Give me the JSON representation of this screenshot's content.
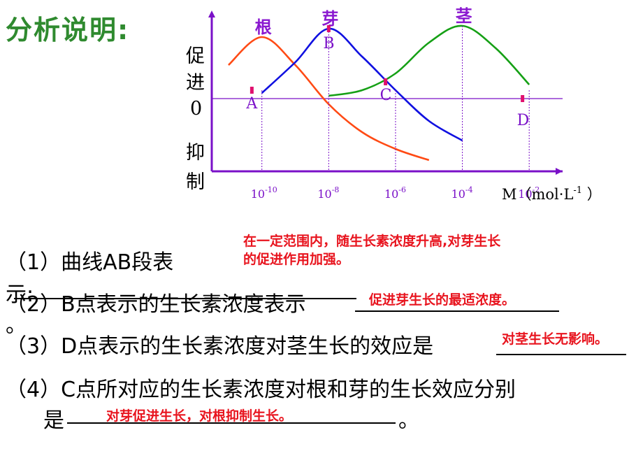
{
  "title": "分析说明:",
  "y_labels": {
    "promote_1": "促",
    "promote_2": "进",
    "zero": "0",
    "inhibit_1": "抑",
    "inhibit_2": "制"
  },
  "x_unit": {
    "text": "M（mol·L",
    "exp": "-1",
    "close": "）"
  },
  "colors": {
    "root": "#ff4a14",
    "bud": "#1010e0",
    "stem": "#15a015",
    "axis": "#7a10c8",
    "zero_line": "#7a10c8",
    "marker": "#e0106e",
    "answer": "#e8141e"
  },
  "chart_data": {
    "type": "line",
    "x": [
      -11,
      -10,
      -9,
      -8,
      -7,
      -6,
      -5,
      -4,
      -3,
      -2
    ],
    "series": [
      {
        "name": "根",
        "peak_label": "根",
        "values": [
          1.2,
          2.2,
          1.2,
          -0.2,
          -1.2,
          -1.8,
          -2.2,
          null,
          null,
          null
        ]
      },
      {
        "name": "芽",
        "peak_label": "芽",
        "values": [
          null,
          0.2,
          1.3,
          2.5,
          1.5,
          0.3,
          -0.8,
          -1.5,
          null,
          null
        ]
      },
      {
        "name": "茎",
        "peak_label": "茎",
        "values": [
          null,
          null,
          null,
          0.1,
          0.3,
          0.9,
          2.0,
          2.6,
          1.8,
          0.5
        ]
      }
    ],
    "x_ticks": [
      {
        "base": "10",
        "exp": "-10",
        "x": -10
      },
      {
        "base": "10",
        "exp": "-8",
        "x": -8
      },
      {
        "base": "10",
        "exp": "-6",
        "x": -6
      },
      {
        "base": "10",
        "exp": "-4",
        "x": -4
      },
      {
        "base": "10",
        "exp": "-2",
        "x": -2
      }
    ],
    "points": [
      {
        "label": "A",
        "x": -10.3,
        "y": 0.3
      },
      {
        "label": "B",
        "x": -8.0,
        "y": 2.5
      },
      {
        "label": "C",
        "x": -6.3,
        "y": 0.6
      },
      {
        "label": "D",
        "x": -2.2,
        "y": 0.0
      }
    ],
    "xlim": [
      -11.5,
      -1.0
    ],
    "ylim": [
      -2.6,
      2.9
    ]
  },
  "questions": {
    "q1_text": "（1）曲线AB段表",
    "q1_wrap": "示:",
    "q1_answer_line1": "在一定范围内，随生长素浓度升高,对芽生长",
    "q1_answer_line2": "的促进作用加强。",
    "q2_text": "（2）B点表示的生长素浓度表示",
    "q2_answer": "促进芽生长的最适浓度。",
    "q2_end": "。",
    "q3_text": "（3）D点表示的生长素浓度对茎生长的效应是",
    "q3_answer": "对茎生长无影响。",
    "q4_text": "（4）C点所对应的生长素浓度对根和芽的生长效应分别",
    "q4_text2": "是",
    "q4_answer": "对芽促进生长，对根抑制生长。",
    "q4_end": "。"
  }
}
